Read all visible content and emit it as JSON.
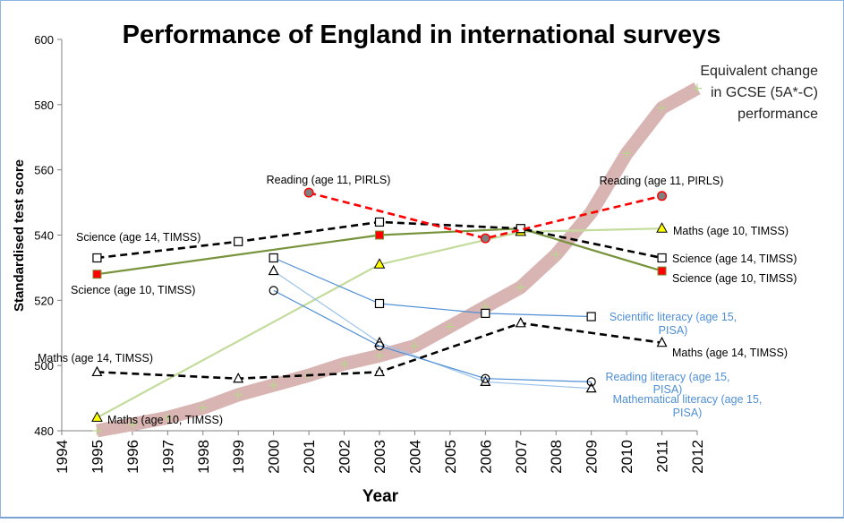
{
  "chart_data": {
    "type": "line",
    "title": "Performance of England in international surveys",
    "xlabel": "Year",
    "ylabel": "Standardised test score",
    "xlim": [
      1994,
      2012
    ],
    "ylim": [
      480,
      600
    ],
    "x_ticks": [
      "1994",
      "1995",
      "1996",
      "1997",
      "1998",
      "1999",
      "2000",
      "2001",
      "2002",
      "2003",
      "2004",
      "2005",
      "2006",
      "2007",
      "2008",
      "2009",
      "2010",
      "2011",
      "2012"
    ],
    "y_ticks": [
      "480",
      "500",
      "520",
      "540",
      "560",
      "580",
      "600"
    ],
    "grid": false,
    "legend": "none (inline series labels)",
    "series": [
      {
        "id": "gcse",
        "name": "Equivalent change in GCSE (5A*-C) performance",
        "label_lines": [
          "Equivalent change",
          "in GCSE (5A*-C)",
          "performance"
        ],
        "color": "#d8b4b3",
        "style": "thick-band",
        "marker": "plus",
        "marker_color": "#b7d68a",
        "x": [
          1995,
          1996,
          1997,
          1998,
          1999,
          2000,
          2001,
          2002,
          2003,
          2004,
          2005,
          2006,
          2007,
          2008,
          2009,
          2010,
          2011,
          2012
        ],
        "y": [
          480,
          482,
          484,
          487,
          491,
          494,
          497,
          500.5,
          503,
          506,
          512,
          518,
          524,
          534,
          547,
          565,
          579,
          585
        ]
      },
      {
        "id": "reading-pirls",
        "name": "Reading (age 11, PIRLS)",
        "color": "#ff0000",
        "style": "dashed",
        "marker": "circle-filled-grey",
        "x": [
          2001,
          2006,
          2011
        ],
        "y": [
          553,
          539,
          552
        ],
        "labels": [
          {
            "text": "Reading  (age 11, PIRLS)",
            "anchor_index": 0
          },
          {
            "text": "Reading  (age 11, PIRLS)",
            "anchor_index": 2
          }
        ]
      },
      {
        "id": "science-14-timss",
        "name": "Science (age 14, TIMSS)",
        "color": "#000000",
        "style": "dashed",
        "marker": "square-open",
        "x": [
          1995,
          1999,
          2003,
          2007,
          2011
        ],
        "y": [
          533,
          538,
          544,
          542,
          533
        ],
        "labels": [
          {
            "text": "Science (age 14, TIMSS)",
            "anchor_index": 0
          },
          {
            "text": "Science (age 14, TIMSS)",
            "anchor_index": 4
          }
        ]
      },
      {
        "id": "science-10-timss",
        "name": "Science (age 10, TIMSS)",
        "color": "#77933c",
        "style": "solid",
        "marker": "square-filled-red",
        "x": [
          1995,
          2003,
          2007,
          2011
        ],
        "y": [
          528,
          540,
          542,
          529
        ],
        "labels": [
          {
            "text": "Science (age 10, TIMSS)",
            "anchor_index": 0
          },
          {
            "text": "Science (age 10, TIMSS)",
            "anchor_index": 3
          }
        ]
      },
      {
        "id": "maths-10-timss",
        "name": "Maths (age 10, TIMSS)",
        "color": "#c3dc9c",
        "style": "solid",
        "marker": "triangle-filled-yellow",
        "x": [
          1995,
          2003,
          2007,
          2011
        ],
        "y": [
          484,
          531,
          541,
          542
        ],
        "labels": [
          {
            "text": "Maths (age 10, TIMSS)",
            "anchor_index": 0
          },
          {
            "text": "Maths (age 10, TIMSS)",
            "anchor_index": 3
          }
        ]
      },
      {
        "id": "maths-14-timss",
        "name": "Maths (age 14, TIMSS)",
        "color": "#000000",
        "style": "dashed",
        "marker": "triangle-open",
        "x": [
          1995,
          1999,
          2003,
          2007,
          2011
        ],
        "y": [
          498,
          496,
          498,
          513,
          507
        ],
        "labels": [
          {
            "text": "Maths (age 14, TIMSS)",
            "anchor_index": 0
          },
          {
            "text": "Maths (age 14, TIMSS)",
            "anchor_index": 4
          }
        ]
      },
      {
        "id": "science-pisa",
        "name": "Scientific literacy (age 15, PISA)",
        "color": "#4f8fd6",
        "style": "thin",
        "marker": "square-open",
        "x": [
          2000,
          2003,
          2006,
          2009
        ],
        "y": [
          533,
          519,
          516,
          515
        ],
        "labels": [
          {
            "text_lines": [
              "Scientific literacy (age 15,",
              "PISA)"
            ],
            "anchor_index": 3
          }
        ]
      },
      {
        "id": "reading-pisa",
        "name": "Reading literacy (age 15, PISA)",
        "color": "#4f8fd6",
        "style": "thin",
        "marker": "circle-open",
        "x": [
          2000,
          2003,
          2006,
          2009
        ],
        "y": [
          523,
          506,
          496,
          495
        ],
        "labels": [
          {
            "text_lines": [
              "Reading literacy (age 15,",
              "PISA)"
            ],
            "anchor_index": 3
          }
        ]
      },
      {
        "id": "maths-pisa",
        "name": "Mathematical literacy (age 15, PISA)",
        "color": "#9cc3ea",
        "style": "thin",
        "marker": "triangle-open",
        "x": [
          2000,
          2003,
          2006,
          2009
        ],
        "y": [
          529,
          507,
          495,
          493
        ],
        "labels": [
          {
            "text_lines": [
              "Mathematical literacy (age 15,",
              "PISA)"
            ],
            "anchor_index": 3
          }
        ]
      }
    ]
  }
}
